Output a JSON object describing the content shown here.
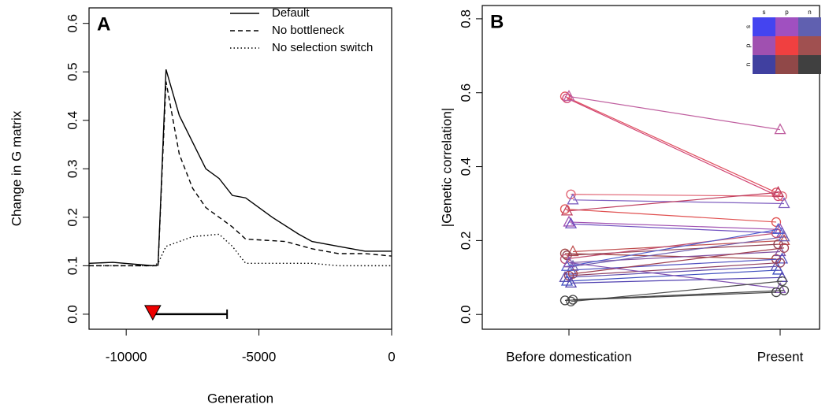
{
  "chart_data": [
    {
      "type": "line",
      "title": "A",
      "x_label": "Generation",
      "y_label": "Change in G matrix",
      "xlim": [
        -11400,
        0
      ],
      "xticks": [
        -10000,
        -5000,
        0
      ],
      "ylim": [
        -0.031,
        0.632
      ],
      "yticks": [
        {
          "value": 0,
          "label": "0.0"
        },
        0.1,
        0.2,
        0.3,
        0.4,
        0.5,
        0.6
      ],
      "legend": "top-right",
      "series": [
        {
          "name": "Default",
          "color": "#000000",
          "dash": "solid",
          "x": [
            -11400,
            -10500,
            -9000,
            -8800,
            -8500,
            -8000,
            -7000,
            -6500,
            -6000,
            -5500,
            -4500,
            -3500,
            -3000,
            -2000,
            -1000,
            0
          ],
          "values": [
            0.105,
            0.107,
            0.1,
            0.101,
            0.505,
            0.41,
            0.3,
            0.28,
            0.245,
            0.24,
            0.2,
            0.165,
            0.15,
            0.14,
            0.13,
            0.13
          ]
        },
        {
          "name": "No bottleneck",
          "color": "#000000",
          "dash": "dashed",
          "x": [
            -11400,
            -9000,
            -8800,
            -8500,
            -8000,
            -7500,
            -7000,
            -6000,
            -5500,
            -4000,
            -3000,
            -2000,
            -1000,
            0
          ],
          "values": [
            0.1,
            0.1,
            0.1,
            0.48,
            0.33,
            0.26,
            0.22,
            0.18,
            0.155,
            0.15,
            0.135,
            0.125,
            0.125,
            0.12
          ]
        },
        {
          "name": "No selection switch",
          "color": "#000000",
          "dash": "dotted",
          "x": [
            -11400,
            -9000,
            -8800,
            -8500,
            -7500,
            -6500,
            -6000,
            -5500,
            -3000,
            -2000,
            0
          ],
          "values": [
            0.1,
            0.1,
            0.105,
            0.14,
            0.16,
            0.165,
            0.14,
            0.105,
            0.105,
            0.1,
            0.1
          ]
        }
      ],
      "annotation_marker": {
        "x": -9000,
        "x_end": -6200,
        "y": 0,
        "color": "#ee0000"
      }
    },
    {
      "type": "slope",
      "title": "B",
      "y_label": "|Genetic correlation|",
      "categories": [
        "Before domestication",
        "Present"
      ],
      "ylim": [
        -0.04,
        0.836
      ],
      "yticks": [
        {
          "value": 0,
          "label": "0.0"
        },
        0.2,
        0.4,
        0.6,
        0.8
      ],
      "series": [
        {
          "color": "#e05060",
          "marker": "circle",
          "values": [
            0.59,
            0.33
          ]
        },
        {
          "color": "#d04070",
          "marker": "circle",
          "values": [
            0.585,
            0.32
          ]
        },
        {
          "color": "#c060a0",
          "marker": "triangle",
          "values": [
            0.59,
            0.5
          ]
        },
        {
          "color": "#e06070",
          "marker": "circle",
          "values": [
            0.325,
            0.32
          ]
        },
        {
          "color": "#8060c0",
          "marker": "triangle",
          "values": [
            0.31,
            0.3
          ]
        },
        {
          "color": "#e05050",
          "marker": "circle",
          "values": [
            0.285,
            0.25
          ]
        },
        {
          "color": "#c04060",
          "marker": "triangle",
          "values": [
            0.28,
            0.33
          ]
        },
        {
          "color": "#a050b0",
          "marker": "triangle",
          "values": [
            0.25,
            0.23
          ]
        },
        {
          "color": "#7050c0",
          "marker": "triangle",
          "values": [
            0.245,
            0.22
          ]
        },
        {
          "color": "#c05050",
          "marker": "triangle",
          "values": [
            0.17,
            0.2
          ]
        },
        {
          "color": "#a04040",
          "marker": "circle",
          "values": [
            0.165,
            0.15
          ]
        },
        {
          "color": "#904050",
          "marker": "circle",
          "values": [
            0.16,
            0.19
          ]
        },
        {
          "color": "#8050a0",
          "marker": "triangle",
          "values": [
            0.14,
            0.17
          ]
        },
        {
          "color": "#5050c0",
          "marker": "triangle",
          "values": [
            0.12,
            0.15
          ]
        },
        {
          "color": "#a04050",
          "marker": "circle",
          "values": [
            0.11,
            0.18
          ]
        },
        {
          "color": "#6050b0",
          "marker": "triangle",
          "values": [
            0.1,
            0.13
          ]
        },
        {
          "color": "#4050c0",
          "marker": "triangle",
          "values": [
            0.09,
            0.12
          ]
        },
        {
          "color": "#904060",
          "marker": "circle",
          "values": [
            0.105,
            0.14
          ]
        },
        {
          "color": "#5040b0",
          "marker": "triangle",
          "values": [
            0.085,
            0.1
          ]
        },
        {
          "color": "#7060b0",
          "marker": "triangle",
          "values": [
            0.13,
            0.21
          ]
        },
        {
          "color": "#c05070",
          "marker": "circle",
          "values": [
            0.15,
            0.22
          ]
        },
        {
          "color": "#5060d0",
          "marker": "triangle",
          "values": [
            0.13,
            0.23
          ]
        },
        {
          "color": "#8050b0",
          "marker": "triangle",
          "values": [
            0.14,
            0.07
          ]
        },
        {
          "color": "#505050",
          "marker": "circle",
          "values": [
            0.035,
            0.09
          ]
        },
        {
          "color": "#444444",
          "marker": "circle",
          "values": [
            0.04,
            0.065
          ]
        },
        {
          "color": "#404040",
          "marker": "circle",
          "values": [
            0.038,
            0.06
          ]
        }
      ],
      "inset": {
        "row_labels": [
          "s",
          "p",
          "n"
        ],
        "col_labels": [
          "s",
          "p",
          "n"
        ],
        "colors": [
          [
            "#4444f0",
            "#a050c0",
            "#6060b0"
          ],
          [
            "#a050b0",
            "#f04040",
            "#a05050"
          ],
          [
            "#4040a0",
            "#904848",
            "#404040"
          ]
        ]
      }
    }
  ]
}
